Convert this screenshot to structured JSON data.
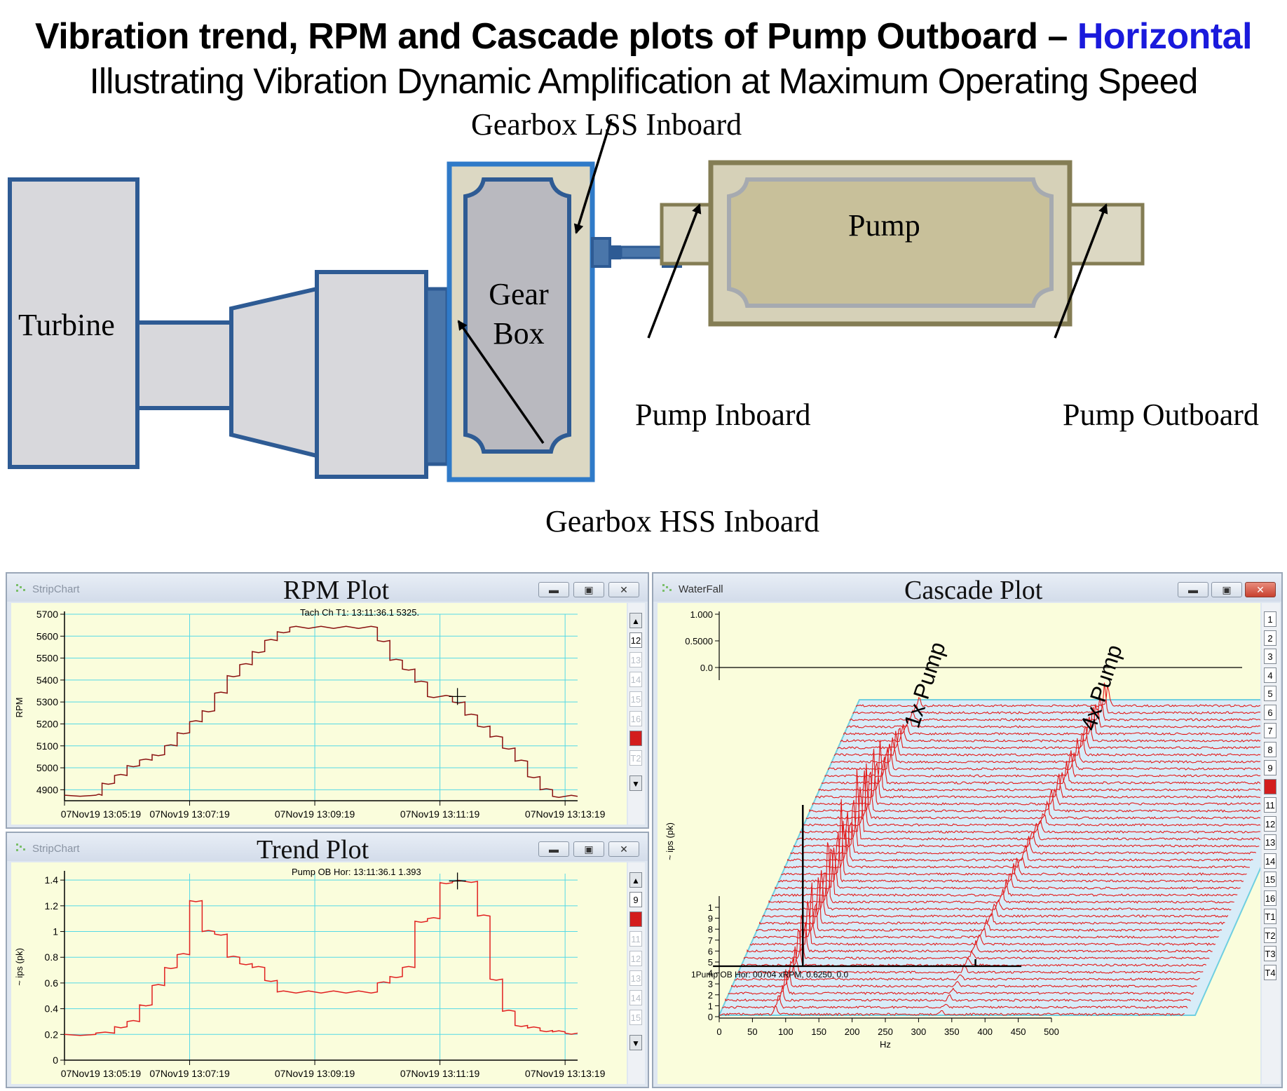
{
  "header": {
    "title_main": "Vibration trend, RPM and Cascade plots of Pump Outboard – ",
    "title_highlight": "Horizontal",
    "subtitle": "Illustrating Vibration Dynamic Amplification at Maximum Operating Speed",
    "highlight_color": "#1a1adc"
  },
  "diagram": {
    "turbine": "Turbine",
    "gearbox_line1": "Gear",
    "gearbox_line2": "Box",
    "pump": "Pump",
    "labels": {
      "gearbox_lss_inboard": "Gearbox LSS Inboard",
      "gearbox_hss_inboard": "Gearbox HSS Inboard",
      "pump_inboard": "Pump Inboard",
      "pump_outboard": "Pump Outboard"
    },
    "colors": {
      "blue_outline": "#2e5b94",
      "machine_fill": "#d8d8dc",
      "pump_fill": "#d6d1b8",
      "pump_outline": "#847d54"
    }
  },
  "rpm_window": {
    "app_title": "StripChart",
    "plot_title": "RPM Plot",
    "cursor_readout": "Tach Ch T1: 13:11:36.1  5325.",
    "ylabel": "RPM",
    "side_buttons": [
      "12",
      "13",
      "14",
      "15",
      "16",
      "",
      "T2"
    ]
  },
  "trend_window": {
    "app_title": "StripChart",
    "plot_title": "Trend Plot",
    "cursor_readout": "Pump OB Hor: 13:11:36.1  1.393",
    "ylabel": "~ ips (pk)",
    "side_buttons": [
      "9",
      "",
      "11",
      "12",
      "13",
      "14",
      "15"
    ]
  },
  "cascade_window": {
    "app_title": "WaterFall",
    "plot_title": "Cascade Plot",
    "ylabel": "~ ips (pk)",
    "xlabel": "Hz",
    "readout": "1Pump OB Hor:   00704 xRPM, 0.6250, 0.0",
    "annot_1x": "1x Pump",
    "annot_4x": "4x Pump",
    "side_buttons": [
      "1",
      "2",
      "3",
      "4",
      "5",
      "6",
      "7",
      "8",
      "9",
      "",
      "11",
      "12",
      "13",
      "14",
      "15",
      "16",
      "T1",
      "T2",
      "T3",
      "T4"
    ]
  },
  "chart_data": [
    {
      "type": "line",
      "title": "RPM Plot",
      "ylabel": "RPM",
      "x_ticks": [
        "07Nov19 13:05:19",
        "07Nov19 13:07:19",
        "07Nov19 13:09:19",
        "07Nov19 13:11:19",
        "07Nov19 13:13:19"
      ],
      "y_ticks": [
        "5700",
        "5600",
        "5500",
        "5400",
        "5300",
        "5200",
        "5100",
        "5000",
        "4900"
      ],
      "ylim": [
        4850,
        5700
      ],
      "series": [
        {
          "x_minutes": [
            0,
            0.5,
            0.6,
            0.8,
            1.0,
            1.2,
            1.4,
            1.6,
            1.8,
            2.0,
            2.2,
            2.4,
            2.6,
            2.8,
            3.0,
            3.2,
            3.4,
            3.6,
            3.8,
            4.0,
            4.2,
            4.4,
            4.6,
            4.8,
            5.0,
            5.2,
            5.4,
            5.6,
            5.8,
            6.0,
            6.2,
            6.4,
            6.6,
            6.8,
            7.0,
            7.2,
            7.4,
            7.6,
            7.8,
            8.0,
            8.2
          ],
          "values": [
            4875,
            4875,
            4930,
            4965,
            5010,
            5035,
            5060,
            5100,
            5160,
            5210,
            5260,
            5340,
            5420,
            5470,
            5530,
            5580,
            5620,
            5640,
            5640,
            5640,
            5640,
            5640,
            5640,
            5640,
            5580,
            5490,
            5450,
            5390,
            5325,
            5325,
            5300,
            5240,
            5190,
            5140,
            5090,
            5030,
            4960,
            4900,
            4870,
            4870,
            4870
          ]
        }
      ],
      "grid": true
    },
    {
      "type": "line",
      "title": "Trend Plot",
      "ylabel": "~ ips (pk)",
      "x_ticks": [
        "07Nov19 13:05:19",
        "07Nov19 13:07:19",
        "07Nov19 13:09:19",
        "07Nov19 13:11:19",
        "07Nov19 13:13:19"
      ],
      "y_ticks": [
        "1.4",
        "1.2",
        "1",
        "0.8",
        "0.6",
        "0.4",
        "0.2",
        "0"
      ],
      "ylim": [
        0,
        1.45
      ],
      "series": [
        {
          "x_minutes": [
            0,
            0.5,
            0.8,
            1.0,
            1.2,
            1.4,
            1.6,
            1.8,
            2.0,
            2.2,
            2.4,
            2.6,
            2.8,
            3.0,
            3.2,
            3.4,
            3.6,
            3.8,
            4.0,
            4.2,
            4.4,
            4.6,
            4.8,
            5.0,
            5.2,
            5.4,
            5.6,
            5.8,
            6.0,
            6.2,
            6.4,
            6.6,
            6.8,
            7.0,
            7.2,
            7.4,
            7.6,
            7.8,
            8.0,
            8.2
          ],
          "values": [
            0.2,
            0.21,
            0.26,
            0.3,
            0.43,
            0.58,
            0.72,
            0.82,
            1.24,
            1.0,
            0.98,
            0.8,
            0.75,
            0.72,
            0.62,
            0.53,
            0.53,
            0.53,
            0.53,
            0.53,
            0.53,
            0.53,
            0.53,
            0.6,
            0.65,
            0.72,
            1.08,
            1.1,
            1.38,
            1.39,
            1.39,
            1.12,
            0.63,
            0.38,
            0.27,
            0.25,
            0.23,
            0.22,
            0.21,
            0.21
          ]
        }
      ],
      "grid": true
    },
    {
      "type": "area",
      "title": "Cascade Plot",
      "xlabel": "Hz",
      "ylabel": "~ ips (pk)",
      "x_ticks": [
        "0",
        "50",
        "100",
        "150",
        "200",
        "250",
        "300",
        "350",
        "400",
        "450",
        "500"
      ],
      "y_ticks": [
        "1.000",
        "0.5000",
        "0.0"
      ],
      "depth_ticks": [
        "1",
        "9",
        "8",
        "7",
        "6",
        "5",
        "4",
        "3",
        "2",
        "1",
        "0"
      ],
      "xlim": [
        0,
        500
      ],
      "peaks": [
        {
          "name": "1x Pump",
          "hz_start": 85,
          "hz_end": 95,
          "max_ips": 1.1
        },
        {
          "name": "4x Pump",
          "hz_start": 330,
          "hz_end": 380,
          "max_ips": 0.5
        }
      ],
      "slices": 45
    }
  ]
}
